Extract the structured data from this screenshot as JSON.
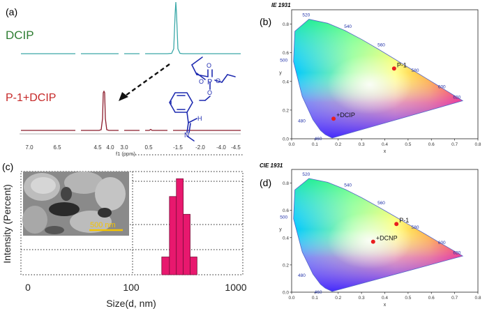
{
  "panels": {
    "a": {
      "label": "(a)",
      "trace_top_name": "DCIP",
      "trace_bottom_name": "P-1+DCIP",
      "axis_title": "f1 (ppm)",
      "tick_labels": [
        "7.0",
        "6.5",
        "4.5",
        "4.0",
        "3.0",
        "0.5",
        "-1.5",
        "-2.0",
        "-4.0",
        "-4.5"
      ],
      "colors": {
        "top": "#3aa8a8",
        "bottom": "#8b1a2a",
        "top_label": "#2e7d32",
        "bottom_label": "#c62828",
        "molecule": "#1f2bb0"
      }
    },
    "b": {
      "label": "(b)",
      "cie_title": "IE 1931",
      "points": [
        {
          "name": "P-1",
          "x": 0.44,
          "y": 0.49
        },
        {
          "name": "+DCIP",
          "x": 0.18,
          "y": 0.14
        }
      ]
    },
    "c": {
      "label": "(c)",
      "scale_bar": "500 nm",
      "ylabel": "Intensity (Percent)",
      "xlabel": "Size(d, nm)",
      "xtick_labels": [
        "0",
        "100",
        "1000"
      ],
      "bar_color": "#e8186e"
    },
    "d": {
      "label": "(d)",
      "cie_title": "CIE 1931",
      "points": [
        {
          "name": "P-1",
          "x": 0.45,
          "y": 0.5
        },
        {
          "name": "+DCNP",
          "x": 0.35,
          "y": 0.37
        }
      ]
    },
    "cie_axes": {
      "xlabel": "x",
      "ylabel": "y",
      "xticks": [
        "0.0",
        "0.1",
        "0.2",
        "0.3",
        "0.4",
        "0.5",
        "0.6",
        "0.7",
        "0.8"
      ],
      "yticks": [
        "0.0",
        "0.2",
        "0.4",
        "0.6",
        "0.8"
      ],
      "wavelengths": [
        "460",
        "480",
        "500",
        "520",
        "540",
        "560",
        "580",
        "600",
        "620"
      ]
    }
  },
  "chart_data": [
    {
      "type": "line",
      "title": "",
      "series": [
        {
          "name": "DCIP",
          "peak_ppm": -1.5
        },
        {
          "name": "P-1+DCIP",
          "peak_ppm": 4.4
        }
      ]
    },
    {
      "type": "scatter",
      "title": "IE 1931",
      "xlim": [
        0.0,
        0.8
      ],
      "ylim": [
        0.0,
        0.9
      ],
      "series": [
        {
          "x": [
            0.44,
            0.18
          ],
          "y": [
            0.49,
            0.14
          ],
          "labels": [
            "P-1",
            "+DCIP"
          ]
        }
      ]
    },
    {
      "type": "bar",
      "xscale": "log",
      "xlabel": "Size(d, nm)",
      "ylabel": "Intensity (Percent)",
      "bins": [
        {
          "from": 190,
          "to": 225,
          "value": 5
        },
        {
          "from": 225,
          "to": 262,
          "value": 22
        },
        {
          "from": 262,
          "to": 305,
          "value": 27
        },
        {
          "from": 305,
          "to": 355,
          "value": 17
        },
        {
          "from": 355,
          "to": 413,
          "value": 5
        }
      ]
    },
    {
      "type": "scatter",
      "title": "CIE 1931",
      "xlim": [
        0.0,
        0.8
      ],
      "ylim": [
        0.0,
        0.9
      ],
      "series": [
        {
          "x": [
            0.45,
            0.35
          ],
          "y": [
            0.5,
            0.37
          ],
          "labels": [
            "P-1",
            "+DCNP"
          ]
        }
      ]
    }
  ]
}
